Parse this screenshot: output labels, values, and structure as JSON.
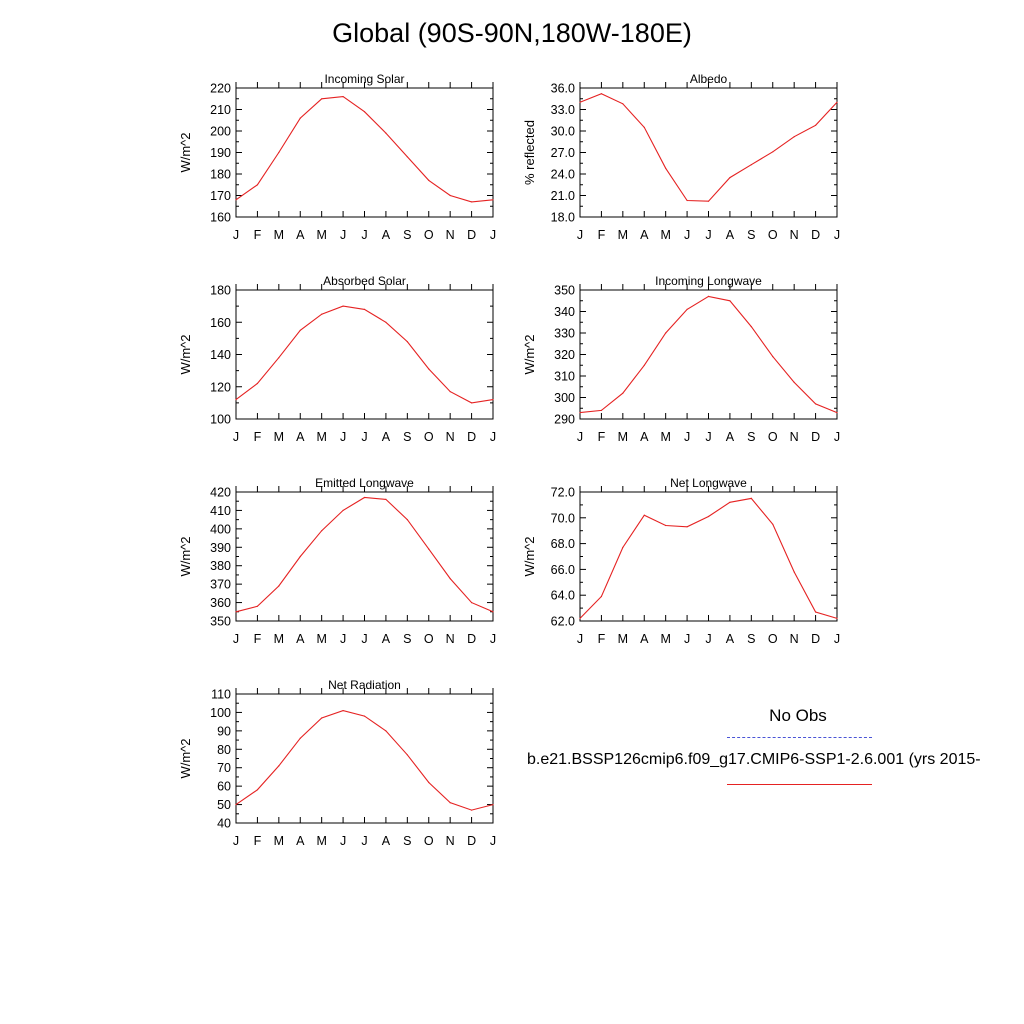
{
  "page_title": "Global (90S-90N,180W-180E)",
  "legend": {
    "obs_label": "No Obs",
    "case_label": "b.e21.BSSP126cmip6.f09_g17.CMIP6-SSP1-2.6.001 (yrs 2015-",
    "obs_color": "#4a54d6",
    "case_color": "#e52222"
  },
  "chart_data": [
    {
      "type": "line",
      "title": "Incoming Solar",
      "ylabel": "W/m^2",
      "categories": [
        "J",
        "F",
        "M",
        "A",
        "M",
        "J",
        "J",
        "A",
        "S",
        "O",
        "N",
        "D",
        "J"
      ],
      "ylim": [
        160,
        220
      ],
      "yticks": [
        "160",
        "170",
        "180",
        "190",
        "200",
        "210",
        "220"
      ],
      "series": [
        {
          "values": [
            168,
            175,
            190,
            206,
            215,
            216,
            209,
            199,
            188,
            177,
            170,
            167,
            168
          ]
        }
      ]
    },
    {
      "type": "line",
      "title": "Albedo",
      "ylabel": "% reflected",
      "categories": [
        "J",
        "F",
        "M",
        "A",
        "M",
        "J",
        "J",
        "A",
        "S",
        "O",
        "N",
        "D",
        "J"
      ],
      "ylim": [
        18.0,
        36.0
      ],
      "yticks": [
        "18.0",
        "21.0",
        "24.0",
        "27.0",
        "30.0",
        "33.0",
        "36.0"
      ],
      "series": [
        {
          "values": [
            34.0,
            35.2,
            33.8,
            30.5,
            24.8,
            20.3,
            20.2,
            23.5,
            25.3,
            27.1,
            29.2,
            30.8,
            34.0
          ]
        }
      ]
    },
    {
      "type": "line",
      "title": "Absorbed Solar",
      "ylabel": "W/m^2",
      "categories": [
        "J",
        "F",
        "M",
        "A",
        "M",
        "J",
        "J",
        "A",
        "S",
        "O",
        "N",
        "D",
        "J"
      ],
      "ylim": [
        100,
        180
      ],
      "yticks": [
        "100",
        "120",
        "140",
        "160",
        "180"
      ],
      "series": [
        {
          "values": [
            112,
            122,
            138,
            155,
            165,
            170,
            168,
            160,
            148,
            131,
            117,
            110,
            112
          ]
        }
      ]
    },
    {
      "type": "line",
      "title": "Incoming Longwave",
      "ylabel": "W/m^2",
      "categories": [
        "J",
        "F",
        "M",
        "A",
        "M",
        "J",
        "J",
        "A",
        "S",
        "O",
        "N",
        "D",
        "J"
      ],
      "ylim": [
        290,
        350
      ],
      "yticks": [
        "290",
        "300",
        "310",
        "320",
        "330",
        "340",
        "350"
      ],
      "series": [
        {
          "values": [
            293,
            294,
            302,
            315,
            330,
            341,
            347,
            345,
            333,
            319,
            307,
            297,
            293
          ]
        }
      ]
    },
    {
      "type": "line",
      "title": "Emitted Longwave",
      "ylabel": "W/m^2",
      "categories": [
        "J",
        "F",
        "M",
        "A",
        "M",
        "J",
        "J",
        "A",
        "S",
        "O",
        "N",
        "D",
        "J"
      ],
      "ylim": [
        350,
        420
      ],
      "yticks": [
        "350",
        "360",
        "370",
        "380",
        "390",
        "400",
        "410",
        "420"
      ],
      "series": [
        {
          "values": [
            355,
            358,
            369,
            385,
            399,
            410,
            417,
            416,
            405,
            389,
            373,
            360,
            355
          ]
        }
      ]
    },
    {
      "type": "line",
      "title": "Net Longwave",
      "ylabel": "W/m^2",
      "categories": [
        "J",
        "F",
        "M",
        "A",
        "M",
        "J",
        "J",
        "A",
        "S",
        "O",
        "N",
        "D",
        "J"
      ],
      "ylim": [
        62.0,
        72.0
      ],
      "yticks": [
        "62.0",
        "64.0",
        "66.0",
        "68.0",
        "70.0",
        "72.0"
      ],
      "series": [
        {
          "values": [
            62.2,
            63.9,
            67.7,
            70.2,
            69.4,
            69.3,
            70.1,
            71.2,
            71.5,
            69.5,
            65.8,
            62.7,
            62.2
          ]
        }
      ]
    },
    {
      "type": "line",
      "title": "Net Radiation",
      "ylabel": "W/m^2",
      "categories": [
        "J",
        "F",
        "M",
        "A",
        "M",
        "J",
        "J",
        "A",
        "S",
        "O",
        "N",
        "D",
        "J"
      ],
      "ylim": [
        40,
        110
      ],
      "yticks": [
        "40",
        "50",
        "60",
        "70",
        "80",
        "90",
        "100",
        "110"
      ],
      "series": [
        {
          "values": [
            50,
            58,
            71,
            86,
            97,
            101,
            98,
            90,
            77,
            62,
            51,
            47,
            50
          ]
        }
      ]
    }
  ]
}
